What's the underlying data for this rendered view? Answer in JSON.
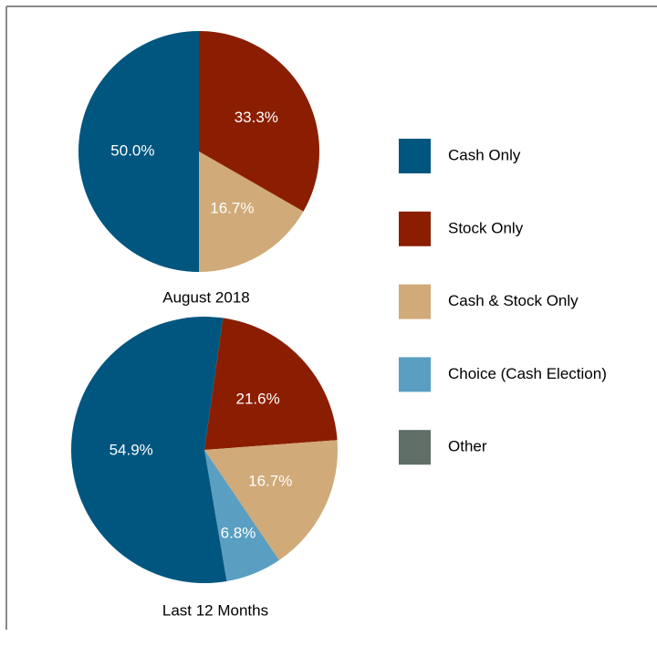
{
  "chart_data": [
    {
      "type": "pie",
      "title": "August 2018",
      "categories": [
        "Stock Only",
        "Cash & Stock Only",
        "Cash Only"
      ],
      "values": [
        33.3,
        16.7,
        50
      ],
      "value_labels": [
        "33.3%",
        "16.7%",
        "50.0%"
      ],
      "colors": [
        "#8b1e00",
        "#d0aa78",
        "#00567f"
      ]
    },
    {
      "type": "pie",
      "title": "Last 12 Months",
      "categories": [
        "Stock Only",
        "Cash & Stock Only",
        "Choice (Cash Election)",
        "Cash Only"
      ],
      "values": [
        21.6,
        16.7,
        6.8,
        54.9
      ],
      "value_labels": [
        "21.6%",
        "16.7%",
        "6.8%",
        "54.9%"
      ],
      "colors": [
        "#8b1e00",
        "#d0aa78",
        "#5a9ec2",
        "#00567f"
      ]
    }
  ],
  "legend": [
    {
      "name": "Cash Only",
      "color": "#00567f"
    },
    {
      "name": "Stock Only",
      "color": "#8b1e00"
    },
    {
      "name": "Cash & Stock Only",
      "color": "#d0aa78"
    },
    {
      "name": "Choice (Cash Election)",
      "color": "#5a9ec2"
    },
    {
      "name": "Other",
      "color": "#5f6e67"
    }
  ]
}
